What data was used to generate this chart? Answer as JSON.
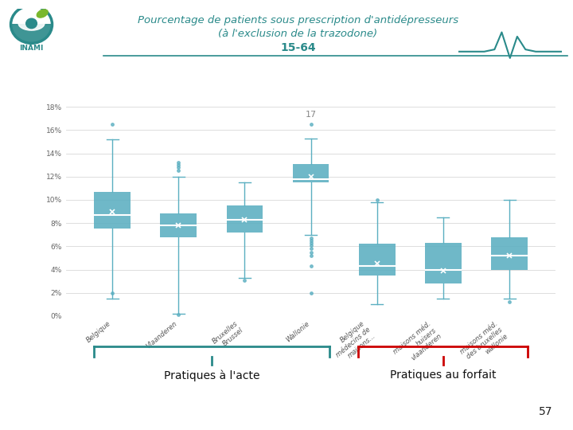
{
  "title_line1": "Pourcentage de patients sous prescription d'antidépresseurs",
  "title_line2": "(à l'exclusion de la trazodone)",
  "title_line3": "15-64",
  "annotation_number": "17",
  "page_number": "57",
  "box_color": "#5BAFC1",
  "grid_color": "#d8d8d8",
  "bg_color": "#ffffff",
  "ytick_labels": [
    "0%",
    "2%",
    "4%",
    "6%",
    "8%",
    "10%",
    "12%",
    "14%",
    "16%",
    "18%"
  ],
  "ytick_values": [
    0,
    2,
    4,
    6,
    8,
    10,
    12,
    14,
    16,
    18
  ],
  "boxes": [
    {
      "q1": 7.5,
      "median": 8.7,
      "q3": 10.7,
      "mean": 9.0,
      "whisker_low": 1.5,
      "whisker_high": 15.2,
      "fliers_low": [
        2.0
      ],
      "fliers_high": [
        16.5
      ]
    },
    {
      "q1": 6.8,
      "median": 7.8,
      "q3": 8.8,
      "mean": 7.8,
      "whisker_low": 0.2,
      "whisker_high": 12.0,
      "fliers_low": [
        0.1
      ],
      "fliers_high": [
        12.5,
        12.8,
        13.0,
        13.2
      ]
    },
    {
      "q1": 7.2,
      "median": 8.3,
      "q3": 9.5,
      "mean": 8.3,
      "whisker_low": 3.3,
      "whisker_high": 11.5,
      "fliers_low": [
        3.1
      ],
      "fliers_high": []
    },
    {
      "q1": 11.5,
      "median": 11.8,
      "q3": 13.1,
      "mean": 12.0,
      "whisker_low": 7.0,
      "whisker_high": 15.3,
      "fliers_low": [
        2.0,
        4.3,
        5.2,
        5.5,
        5.8,
        6.1,
        6.3,
        6.5,
        6.7
      ],
      "fliers_high": [
        16.5
      ]
    },
    {
      "q1": 3.5,
      "median": 4.3,
      "q3": 6.2,
      "mean": 4.5,
      "whisker_low": 1.0,
      "whisker_high": 9.8,
      "fliers_low": [],
      "fliers_high": [
        10.0
      ]
    },
    {
      "q1": 2.8,
      "median": 4.0,
      "q3": 6.3,
      "mean": 3.9,
      "whisker_low": 1.5,
      "whisker_high": 8.5,
      "fliers_low": [],
      "fliers_high": []
    },
    {
      "q1": 4.0,
      "median": 5.2,
      "q3": 6.8,
      "mean": 5.2,
      "whisker_low": 1.5,
      "whisker_high": 10.0,
      "fliers_low": [
        1.2
      ],
      "fliers_high": []
    }
  ],
  "cat_labels": [
    "Belgique",
    "Vlaanderen",
    "Bruxelles\nBrussel",
    "Wallonie",
    "Belgique\nmédecins de\nmaisons...",
    "maisons méd.\nhuisers\nvlaanderen",
    "maisons méd.\ndes bruxelles\nwallonie"
  ],
  "bracket_acte_color": "#2a8a8a",
  "bracket_forfait_color": "#cc0000",
  "bracket_acte_label": "Pratiques à l'acte",
  "bracket_forfait_label": "Pratiques au forfait",
  "teal_color": "#2a8a8a",
  "title_color": "#2a8a8a",
  "ecg_color": "#2a8a8a"
}
